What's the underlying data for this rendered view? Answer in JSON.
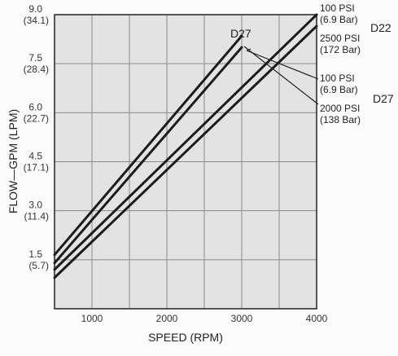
{
  "chart_data": {
    "type": "line",
    "title": "",
    "xlabel": "SPEED (RPM)",
    "ylabel": "FLOW—GPM (LPM)",
    "xlim": [
      500,
      4000
    ],
    "ylim": [
      0,
      9
    ],
    "grid": true,
    "x_ticks": [
      "1000",
      "2000",
      "3000",
      "4000"
    ],
    "y_ticks": [
      {
        "value": 9.0,
        "gpm": "9.0",
        "lpm": "(34.1)"
      },
      {
        "value": 7.5,
        "gpm": "7.5",
        "lpm": "(28.4)"
      },
      {
        "value": 6.0,
        "gpm": "6.0",
        "lpm": "(22.7)"
      },
      {
        "value": 4.5,
        "gpm": "4.5",
        "lpm": "(17.1)"
      },
      {
        "value": 3.0,
        "gpm": "3.0",
        "lpm": "(11.4)"
      },
      {
        "value": 1.5,
        "gpm": "1.5",
        "lpm": "(5.7)"
      }
    ],
    "series": [
      {
        "x": [
          500,
          3000
        ],
        "y": [
          1.65,
          8.35
        ]
      },
      {
        "x": [
          500,
          3000
        ],
        "y": [
          1.4,
          8.0
        ]
      },
      {
        "x": [
          500,
          4000
        ],
        "y": [
          1.2,
          9.0
        ]
      },
      {
        "x": [
          500,
          4000
        ],
        "y": [
          0.95,
          8.65
        ]
      }
    ],
    "annotations": [
      {
        "text": "D27"
      },
      {
        "text": "100 PSI",
        "sub": "(6.9 Bar)"
      },
      {
        "text": "2500 PSI",
        "sub": "(172 Bar)"
      },
      {
        "text": "D22"
      },
      {
        "text": "100 PSI",
        "sub": "(6.9 Bar)"
      },
      {
        "text": "2000 PSI",
        "sub": "(138 Bar)"
      },
      {
        "text": "D27"
      }
    ]
  }
}
